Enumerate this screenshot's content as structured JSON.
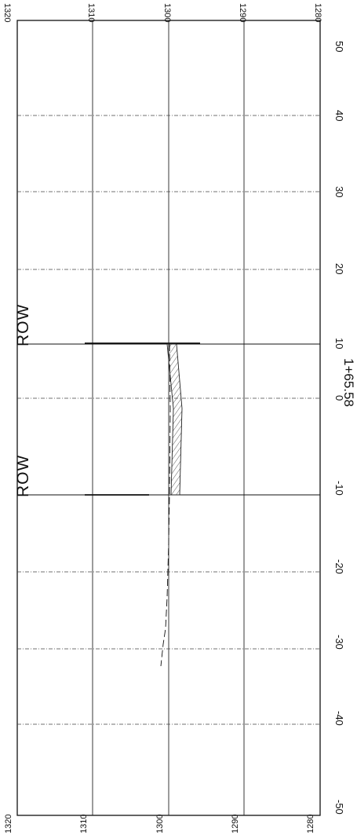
{
  "sheet": {
    "station_label": "1+65.58",
    "row_labels": [
      "ROW",
      "ROW"
    ]
  },
  "offset_ticks": [
    "-50",
    "-40",
    "-30",
    "-20",
    "-10",
    "0",
    "10",
    "20",
    "30",
    "40",
    "50"
  ],
  "elevation_ticks_top": [
    "1320",
    "1310",
    "1300",
    "1290",
    "1280"
  ],
  "elevation_ticks_bottom": [
    "1320",
    "1310",
    "1300",
    "1290",
    "1280"
  ],
  "colors": {
    "ink": "#111111",
    "grid_minor": "#444444",
    "hatch": "#333333"
  }
}
